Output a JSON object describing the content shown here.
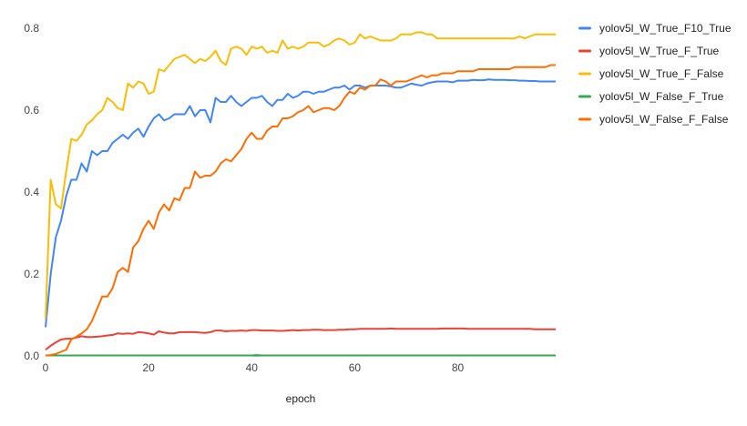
{
  "chart_data": {
    "type": "line",
    "xlabel": "epoch",
    "ylabel": "",
    "xlim": [
      0,
      99
    ],
    "ylim": [
      0,
      0.8
    ],
    "x_ticks": [
      0,
      20,
      40,
      60,
      80
    ],
    "y_ticks": [
      0.0,
      0.2,
      0.4,
      0.6,
      0.8
    ],
    "y_tick_labels": [
      "0.0",
      "0.2",
      "0.4",
      "0.6",
      "0.8"
    ],
    "grid": false,
    "legend_position": "right",
    "series": [
      {
        "name": "yolov5l_W_True_F10_True",
        "color": "#4285F4",
        "values": [
          0.07,
          0.2,
          0.29,
          0.33,
          0.39,
          0.43,
          0.43,
          0.47,
          0.45,
          0.5,
          0.49,
          0.5,
          0.5,
          0.52,
          0.53,
          0.54,
          0.53,
          0.545,
          0.555,
          0.535,
          0.56,
          0.58,
          0.59,
          0.575,
          0.58,
          0.59,
          0.59,
          0.59,
          0.61,
          0.585,
          0.6,
          0.6,
          0.57,
          0.63,
          0.62,
          0.62,
          0.635,
          0.62,
          0.61,
          0.62,
          0.63,
          0.63,
          0.635,
          0.62,
          0.61,
          0.625,
          0.625,
          0.64,
          0.63,
          0.635,
          0.645,
          0.645,
          0.64,
          0.645,
          0.645,
          0.65,
          0.655,
          0.655,
          0.66,
          0.65,
          0.66,
          0.66,
          0.655,
          0.66,
          0.66,
          0.66,
          0.66,
          0.658,
          0.655,
          0.655,
          0.66,
          0.665,
          0.662,
          0.66,
          0.665,
          0.668,
          0.67,
          0.67,
          0.67,
          0.668,
          0.672,
          0.672,
          0.672,
          0.674,
          0.673,
          0.673,
          0.675,
          0.674,
          0.674,
          0.674,
          0.673,
          0.673,
          0.672,
          0.672,
          0.671,
          0.671,
          0.67,
          0.67,
          0.67,
          0.67
        ]
      },
      {
        "name": "yolov5l_W_True_F_True",
        "color": "#EA4335",
        "values": [
          0.015,
          0.025,
          0.033,
          0.04,
          0.042,
          0.042,
          0.045,
          0.048,
          0.046,
          0.046,
          0.047,
          0.048,
          0.05,
          0.051,
          0.055,
          0.054,
          0.055,
          0.054,
          0.058,
          0.057,
          0.055,
          0.052,
          0.06,
          0.057,
          0.055,
          0.055,
          0.058,
          0.058,
          0.058,
          0.058,
          0.057,
          0.056,
          0.058,
          0.062,
          0.062,
          0.06,
          0.061,
          0.061,
          0.062,
          0.061,
          0.063,
          0.063,
          0.062,
          0.062,
          0.062,
          0.061,
          0.061,
          0.062,
          0.063,
          0.062,
          0.063,
          0.063,
          0.064,
          0.064,
          0.063,
          0.063,
          0.063,
          0.064,
          0.064,
          0.065,
          0.065,
          0.066,
          0.066,
          0.066,
          0.066,
          0.066,
          0.066,
          0.067,
          0.066,
          0.066,
          0.066,
          0.066,
          0.066,
          0.066,
          0.066,
          0.066,
          0.066,
          0.067,
          0.067,
          0.067,
          0.067,
          0.067,
          0.066,
          0.066,
          0.066,
          0.066,
          0.066,
          0.066,
          0.066,
          0.066,
          0.066,
          0.066,
          0.066,
          0.066,
          0.066,
          0.065,
          0.065,
          0.065,
          0.065,
          0.065
        ]
      },
      {
        "name": "yolov5l_W_True_F_False",
        "color": "#FBBC04",
        "values": [
          0.09,
          0.43,
          0.37,
          0.36,
          0.45,
          0.53,
          0.525,
          0.54,
          0.565,
          0.575,
          0.59,
          0.6,
          0.63,
          0.62,
          0.605,
          0.6,
          0.665,
          0.655,
          0.67,
          0.665,
          0.64,
          0.645,
          0.7,
          0.695,
          0.71,
          0.725,
          0.73,
          0.735,
          0.725,
          0.715,
          0.725,
          0.72,
          0.73,
          0.745,
          0.72,
          0.71,
          0.75,
          0.755,
          0.75,
          0.735,
          0.755,
          0.75,
          0.755,
          0.74,
          0.745,
          0.74,
          0.77,
          0.75,
          0.755,
          0.75,
          0.755,
          0.765,
          0.765,
          0.765,
          0.755,
          0.76,
          0.77,
          0.775,
          0.77,
          0.76,
          0.765,
          0.785,
          0.775,
          0.78,
          0.775,
          0.77,
          0.77,
          0.77,
          0.775,
          0.785,
          0.785,
          0.785,
          0.79,
          0.79,
          0.785,
          0.785,
          0.775,
          0.775,
          0.775,
          0.775,
          0.775,
          0.775,
          0.775,
          0.775,
          0.775,
          0.775,
          0.775,
          0.775,
          0.775,
          0.775,
          0.775,
          0.775,
          0.78,
          0.775,
          0.78,
          0.785,
          0.785,
          0.785,
          0.785,
          0.785
        ]
      },
      {
        "name": "yolov5l_W_False_F_True",
        "color": "#34A853",
        "values": [
          0.001,
          0.001,
          0.001,
          0.001,
          0.001,
          0.001,
          0.001,
          0.001,
          0.001,
          0.001,
          0.001,
          0.001,
          0.001,
          0.001,
          0.001,
          0.001,
          0.001,
          0.001,
          0.001,
          0.001,
          0.001,
          0.001,
          0.001,
          0.001,
          0.001,
          0.001,
          0.001,
          0.001,
          0.001,
          0.001,
          0.001,
          0.001,
          0.001,
          0.001,
          0.001,
          0.001,
          0.001,
          0.001,
          0.001,
          0.001,
          0.001,
          0.002,
          0.001,
          0.001,
          0.001,
          0.001,
          0.001,
          0.001,
          0.001,
          0.001,
          0.001,
          0.001,
          0.001,
          0.001,
          0.001,
          0.001,
          0.001,
          0.001,
          0.001,
          0.001,
          0.001,
          0.001,
          0.001,
          0.001,
          0.001,
          0.001,
          0.001,
          0.001,
          0.001,
          0.001,
          0.001,
          0.001,
          0.001,
          0.001,
          0.001,
          0.001,
          0.001,
          0.001,
          0.001,
          0.001,
          0.001,
          0.001,
          0.001,
          0.001,
          0.001,
          0.001,
          0.001,
          0.001,
          0.001,
          0.001,
          0.001,
          0.001,
          0.001,
          0.001,
          0.001,
          0.001,
          0.001,
          0.001,
          0.001,
          0.001
        ]
      },
      {
        "name": "yolov5l_W_False_F_False",
        "color": "#FF6D01",
        "values": [
          0.001,
          0.002,
          0.005,
          0.01,
          0.015,
          0.04,
          0.047,
          0.055,
          0.065,
          0.085,
          0.115,
          0.145,
          0.145,
          0.165,
          0.205,
          0.215,
          0.205,
          0.265,
          0.28,
          0.31,
          0.33,
          0.31,
          0.35,
          0.37,
          0.355,
          0.385,
          0.38,
          0.41,
          0.41,
          0.45,
          0.435,
          0.44,
          0.44,
          0.45,
          0.47,
          0.48,
          0.475,
          0.49,
          0.505,
          0.53,
          0.545,
          0.53,
          0.53,
          0.55,
          0.56,
          0.56,
          0.58,
          0.58,
          0.585,
          0.595,
          0.6,
          0.61,
          0.595,
          0.6,
          0.605,
          0.605,
          0.6,
          0.61,
          0.63,
          0.645,
          0.64,
          0.655,
          0.65,
          0.66,
          0.66,
          0.675,
          0.67,
          0.66,
          0.67,
          0.67,
          0.67,
          0.675,
          0.68,
          0.685,
          0.68,
          0.685,
          0.685,
          0.69,
          0.69,
          0.69,
          0.695,
          0.695,
          0.695,
          0.695,
          0.7,
          0.7,
          0.7,
          0.7,
          0.7,
          0.7,
          0.7,
          0.705,
          0.705,
          0.705,
          0.705,
          0.705,
          0.705,
          0.705,
          0.71,
          0.71
        ]
      }
    ]
  }
}
